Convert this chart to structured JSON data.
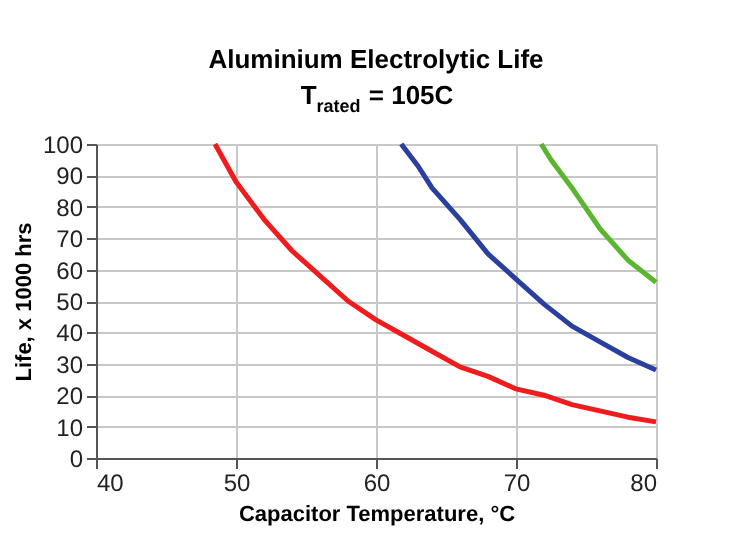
{
  "chart_data": {
    "type": "line",
    "title": "Aluminium Electrolytic Life",
    "subtitle": "T$_{rated}$ = 105C",
    "xlabel": "Capacitor Temperature, °C",
    "ylabel": "Life, x 1000 hrs",
    "xlim": [
      40,
      80
    ],
    "xticks": [
      40,
      50,
      60,
      70,
      80
    ],
    "ylim": [
      0,
      100
    ],
    "yticks": [
      0,
      10,
      20,
      30,
      40,
      50,
      60,
      70,
      80,
      90,
      100
    ],
    "grid": true,
    "legend": false,
    "marker": "none",
    "line_style": "solid",
    "series": [
      {
        "color": "#ee1c1c",
        "x": [
          48.5,
          50,
          52,
          54,
          56,
          58,
          60,
          62,
          64,
          66,
          68,
          70,
          72,
          74,
          76,
          78,
          80
        ],
        "values": [
          100,
          88,
          76,
          66,
          58,
          50,
          44,
          39,
          34,
          29,
          26,
          22,
          20,
          17,
          15,
          13,
          11.5
        ]
      },
      {
        "color": "#2b3f9e",
        "x": [
          61.8,
          63,
          64,
          66,
          68,
          70,
          72,
          74,
          76,
          78,
          80
        ],
        "values": [
          100,
          93,
          86,
          76,
          65,
          57,
          49,
          42,
          37,
          32,
          28
        ]
      },
      {
        "color": "#5cb531",
        "x": [
          71.8,
          72.5,
          74,
          76,
          78,
          80
        ],
        "values": [
          100,
          95,
          86,
          73,
          63,
          56
        ]
      }
    ]
  }
}
